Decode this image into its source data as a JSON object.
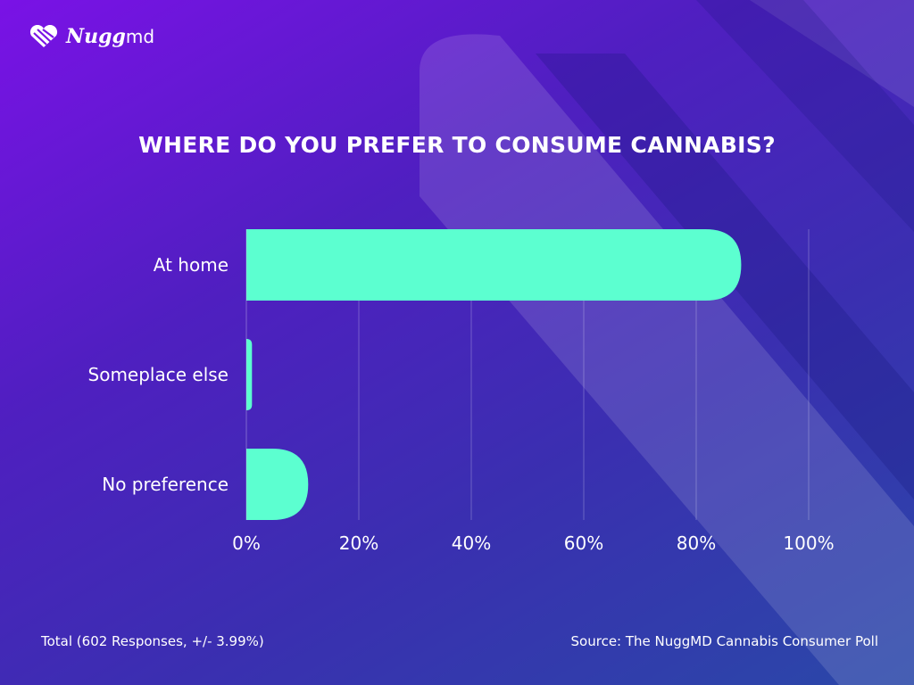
{
  "brand": {
    "name": "Nugg",
    "suffix": "md"
  },
  "chart_data": {
    "type": "bar",
    "orientation": "horizontal",
    "title": "WHERE DO YOU PREFER TO CONSUME CANNABIS?",
    "categories": [
      "At home",
      "Someplace else",
      "No preference"
    ],
    "values": [
      88,
      1,
      11
    ],
    "xlim": [
      0,
      100
    ],
    "xticks": [
      "0%",
      "20%",
      "40%",
      "60%",
      "80%",
      "100%"
    ],
    "grid": true,
    "bar_color": "#5cffd0"
  },
  "footer": {
    "total": "Total (602 Responses, +/- 3.99%)",
    "source": "Source: The NuggMD Cannabis Consumer Poll"
  }
}
